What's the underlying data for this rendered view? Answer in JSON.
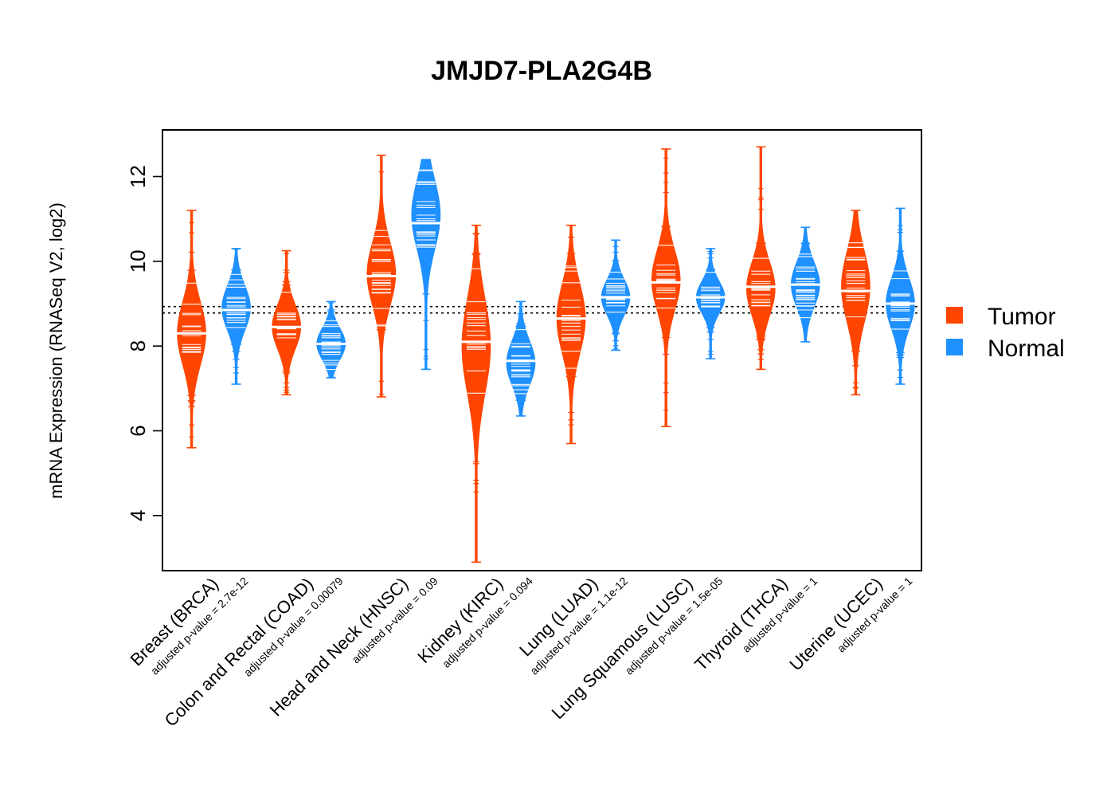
{
  "chart_data": {
    "type": "beanplot",
    "title": "JMJD7-PLA2G4B",
    "ylabel": "mRNA Expression (RNASeq V2, log2)",
    "xlabel": "",
    "ylim": [
      2.7,
      13.1
    ],
    "yticks": [
      4,
      6,
      8,
      10,
      12
    ],
    "reference_lines": [
      8.78,
      8.93
    ],
    "legend": {
      "position": "right",
      "entries": [
        {
          "name": "Tumor",
          "color": "#FF4500"
        },
        {
          "name": "Normal",
          "color": "#1E90FF"
        }
      ]
    },
    "colors": {
      "tumor": "#FF4500",
      "normal": "#1E90FF"
    },
    "groups": [
      {
        "label": "Breast (BRCA)",
        "pvalue_text": "adjusted p-value = 2.7e-12",
        "tumor": {
          "median": 8.3,
          "q1": 7.8,
          "q3": 8.8,
          "min": 5.6,
          "max": 11.2,
          "mode": 8.3
        },
        "normal": {
          "median": 8.85,
          "q1": 8.5,
          "q3": 9.2,
          "min": 7.1,
          "max": 10.3,
          "mode": 8.9
        }
      },
      {
        "label": "Colon and Rectal (COAD)",
        "pvalue_text": "adjusted p-value = 0.00079",
        "tumor": {
          "median": 8.45,
          "q1": 8.1,
          "q3": 8.8,
          "min": 6.85,
          "max": 10.25,
          "mode": 8.45
        },
        "normal": {
          "median": 8.05,
          "q1": 7.8,
          "q3": 8.3,
          "min": 7.25,
          "max": 9.05,
          "mode": 8.05
        }
      },
      {
        "label": "Head and Neck (HNSC)",
        "pvalue_text": "adjusted p-value = 0.09",
        "tumor": {
          "median": 9.65,
          "q1": 9.2,
          "q3": 10.2,
          "min": 6.8,
          "max": 12.5,
          "mode": 9.7
        },
        "normal": {
          "median": 10.9,
          "q1": 10.3,
          "q3": 11.4,
          "min": 7.45,
          "max": 12.4,
          "mode": 11.1
        }
      },
      {
        "label": "Kidney (KIRC)",
        "pvalue_text": "adjusted p-value = 0.094",
        "tumor": {
          "median": 8.1,
          "q1": 7.3,
          "q3": 8.8,
          "min": 2.9,
          "max": 10.85,
          "mode": 8.0
        },
        "normal": {
          "median": 7.65,
          "q1": 7.3,
          "q3": 8.0,
          "min": 6.35,
          "max": 9.05,
          "mode": 7.6
        }
      },
      {
        "label": "Lung (LUAD)",
        "pvalue_text": "adjusted p-value = 1.1e-12",
        "tumor": {
          "median": 8.65,
          "q1": 8.1,
          "q3": 9.2,
          "min": 5.7,
          "max": 10.85,
          "mode": 8.65
        },
        "normal": {
          "median": 9.15,
          "q1": 8.9,
          "q3": 9.45,
          "min": 7.9,
          "max": 10.5,
          "mode": 9.15
        }
      },
      {
        "label": "Lung Squamous (LUSC)",
        "pvalue_text": "adjusted p-value = 1.5e-05",
        "tumor": {
          "median": 9.5,
          "q1": 9.0,
          "q3": 9.95,
          "min": 6.1,
          "max": 12.65,
          "mode": 9.55
        },
        "normal": {
          "median": 9.15,
          "q1": 8.9,
          "q3": 9.4,
          "min": 7.7,
          "max": 10.3,
          "mode": 9.15
        }
      },
      {
        "label": "Thyroid (THCA)",
        "pvalue_text": "adjusted p-value = 1",
        "tumor": {
          "median": 9.4,
          "q1": 8.95,
          "q3": 9.8,
          "min": 7.45,
          "max": 12.7,
          "mode": 9.35
        },
        "normal": {
          "median": 9.45,
          "q1": 9.1,
          "q3": 9.8,
          "min": 8.1,
          "max": 10.8,
          "mode": 9.45
        }
      },
      {
        "label": "Uterine (UCEC)",
        "pvalue_text": "adjusted p-value = 1",
        "tumor": {
          "median": 9.3,
          "q1": 8.8,
          "q3": 9.9,
          "min": 6.85,
          "max": 11.2,
          "mode": 9.4
        },
        "normal": {
          "median": 9.0,
          "q1": 8.6,
          "q3": 9.4,
          "min": 7.1,
          "max": 11.25,
          "mode": 9.0
        }
      }
    ]
  }
}
